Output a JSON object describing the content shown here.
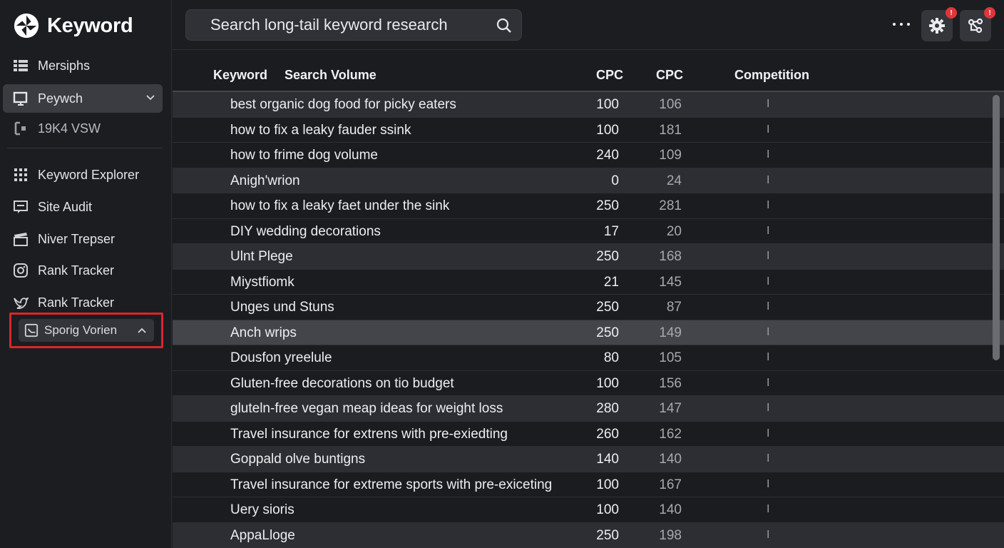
{
  "app": {
    "name": "Keyword",
    "accent_highlight": "#d8262c",
    "badge_color": "#e0353b"
  },
  "sidebar": {
    "items": [
      {
        "label": "Mersiphs",
        "icon": "grid-list-icon"
      },
      {
        "label": "Peywch",
        "icon": "monitor-icon",
        "active": true
      },
      {
        "label": "19K4 VSW",
        "icon": "bracket-icon"
      },
      {
        "label": "Keyword Explorer",
        "icon": "dots-grid-icon"
      },
      {
        "label": "Site Audit",
        "icon": "chat-screen-icon"
      },
      {
        "label": "Niver Trepser",
        "icon": "clapperboard-icon"
      },
      {
        "label": "Rank Tracker",
        "icon": "instagram-icon"
      },
      {
        "label": "Rank Tracker",
        "icon": "twitter-bird-icon"
      }
    ],
    "highlighted": {
      "label": "Sporig Vorien",
      "icon": "window-check-icon"
    }
  },
  "topbar": {
    "search_value": "Search long-tail keyword research",
    "settings_badge": "!",
    "share_badge": "!"
  },
  "table": {
    "headers": {
      "keyword": "Keyword",
      "volume": "Search Volume",
      "cpc1": "CPC",
      "cpc2": "CPC",
      "competition": "Competition"
    },
    "rows": [
      {
        "keyword": "best organic dog food for picky eaters",
        "volume": "100",
        "cpc": "106",
        "competition": "I"
      },
      {
        "keyword": "how to fix a leaky fauder ssink",
        "volume": "100",
        "cpc": "181",
        "competition": "I"
      },
      {
        "keyword": "how to frime dog volume",
        "volume": "240",
        "cpc": "109",
        "competition": "I"
      },
      {
        "keyword": "Anigh'wrion",
        "volume": "0",
        "cpc": "24",
        "competition": "I"
      },
      {
        "keyword": "how to fix a leaky faet under the sink",
        "volume": "250",
        "cpc": "281",
        "competition": "I"
      },
      {
        "keyword": "DIY wedding decorations",
        "volume": "17",
        "cpc": "20",
        "competition": "I"
      },
      {
        "keyword": "Ulnt Plege",
        "volume": "250",
        "cpc": "168",
        "competition": "I"
      },
      {
        "keyword": "Miystfiomk",
        "volume": "21",
        "cpc": "145",
        "competition": "I"
      },
      {
        "keyword": "Unges und Stuns",
        "volume": "250",
        "cpc": "87",
        "competition": "I"
      },
      {
        "keyword": "Anch wrips",
        "volume": "250",
        "cpc": "149",
        "competition": "I"
      },
      {
        "keyword": "Dousfon yreelule",
        "volume": "80",
        "cpc": "105",
        "competition": "I"
      },
      {
        "keyword": "Gluten-free decorations on tio budget",
        "volume": "100",
        "cpc": "156",
        "competition": "I"
      },
      {
        "keyword": "gluteln-free vegan meap ideas for weight loss",
        "volume": "280",
        "cpc": "147",
        "competition": "I"
      },
      {
        "keyword": "Travel insurance for extrens with pre-exiedting",
        "volume": "260",
        "cpc": "162",
        "competition": "I"
      },
      {
        "keyword": "Goppald olve buntigns",
        "volume": "140",
        "cpc": "140",
        "competition": "I"
      },
      {
        "keyword": "Travel insurance for extreme sports with pre-exiceting",
        "volume": "100",
        "cpc": "167",
        "competition": "I"
      },
      {
        "keyword": "Uery sioris",
        "volume": "100",
        "cpc": "140",
        "competition": "I"
      },
      {
        "keyword": "AppaLloge",
        "volume": "250",
        "cpc": "198",
        "competition": "I"
      }
    ]
  }
}
